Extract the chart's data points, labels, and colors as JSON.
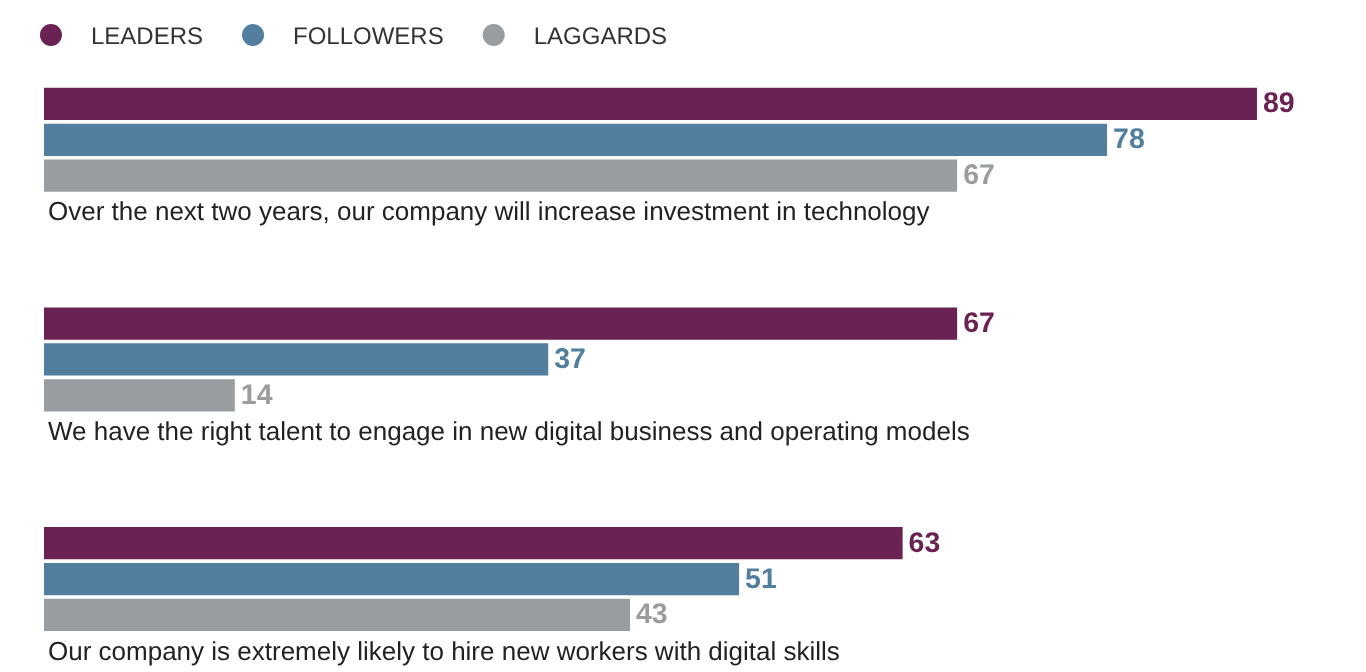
{
  "chart_data": {
    "type": "bar",
    "orientation": "horizontal",
    "categories": [
      "Over the next two years, our company will increase investment in technology",
      "We have the right talent to engage in new digital business and operating models",
      "Our company is extremely likely to hire new workers with digital skills"
    ],
    "series": [
      {
        "name": "LEADERS",
        "color": "#6a2252",
        "values": [
          89,
          67,
          63
        ]
      },
      {
        "name": "FOLLOWERS",
        "color": "#527f9d",
        "values": [
          78,
          37,
          51
        ]
      },
      {
        "name": "LAGGARDS",
        "color": "#9a9d9f",
        "values": [
          67,
          14,
          43
        ]
      }
    ],
    "xlim": [
      0,
      97
    ],
    "data_labels": true,
    "legend": "top left"
  }
}
